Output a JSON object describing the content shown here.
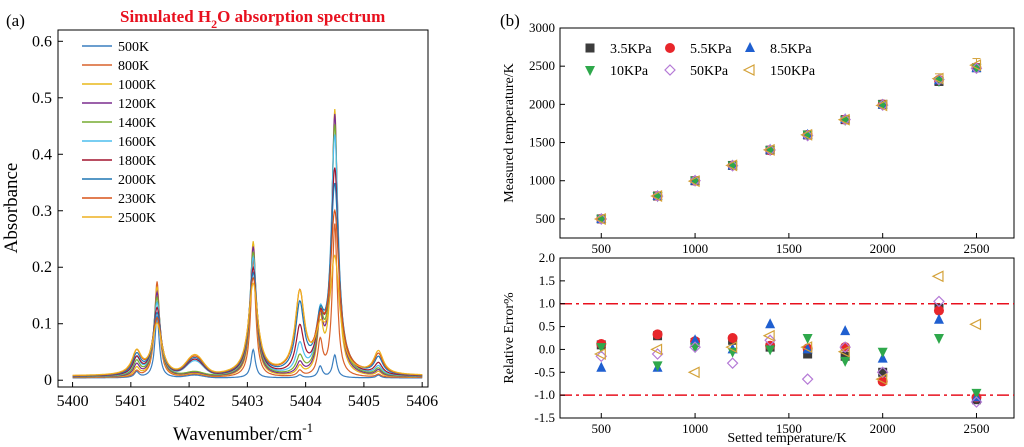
{
  "chart_data": [
    {
      "id": "a",
      "type": "line",
      "panel_label": "(a)",
      "title": "Simulated H",
      "title_sub": "2",
      "title_rest": "O absorption spectrum",
      "xlabel": "Wavenumber/cm",
      "xlabel_sup": "-1",
      "ylabel": "Absorbance",
      "xlim": [
        5399.75,
        5406.1
      ],
      "ylim": [
        -0.012,
        0.62
      ],
      "xticks": [
        5400,
        5401,
        5402,
        5403,
        5404,
        5405,
        5406
      ],
      "yticks": [
        0,
        0.1,
        0.2,
        0.3,
        0.4,
        0.5,
        0.6
      ],
      "ytick_labels": [
        "0",
        "0.1",
        "0.2",
        "0.3",
        "0.4",
        "0.5",
        "0.6"
      ],
      "peaks": [
        {
          "center": 5401.45,
          "heights": [
            0.11,
            0.17,
            0.16,
            0.15,
            0.14,
            0.13,
            0.12,
            0.11,
            0.1,
            0.09
          ]
        },
        {
          "center": 5403.1,
          "heights": [
            0.05,
            0.21,
            0.24,
            0.23,
            0.22,
            0.21,
            0.19,
            0.18,
            0.17,
            0.16
          ]
        },
        {
          "center": 5403.9,
          "heights": [
            0.005,
            0.01,
            0.015,
            0.02,
            0.03,
            0.05,
            0.08,
            0.12,
            0.14,
            0.14
          ]
        },
        {
          "center": 5404.5,
          "heights": [
            0.04,
            0.27,
            0.47,
            0.46,
            0.44,
            0.42,
            0.36,
            0.33,
            0.28,
            0.2
          ]
        },
        {
          "center": 5404.25,
          "heights": [
            0.02,
            0.06,
            0.09,
            0.09,
            0.09,
            0.09,
            0.08,
            0.08,
            0.07,
            0.06
          ]
        },
        {
          "center": 5401.1,
          "heights": [
            0.01,
            0.01,
            0.015,
            0.02,
            0.025,
            0.03,
            0.03,
            0.035,
            0.04,
            0.04
          ]
        },
        {
          "center": 5405.25,
          "heights": [
            0.005,
            0.005,
            0.008,
            0.01,
            0.012,
            0.015,
            0.02,
            0.03,
            0.035,
            0.04
          ]
        }
      ],
      "series": [
        {
          "name": "500K",
          "color": "#3a7ebf"
        },
        {
          "name": "800K",
          "color": "#d9622b"
        },
        {
          "name": "1000K",
          "color": "#e8b81a"
        },
        {
          "name": "1200K",
          "color": "#7b2d8e"
        },
        {
          "name": "1400K",
          "color": "#77ac30"
        },
        {
          "name": "1600K",
          "color": "#4dbeee"
        },
        {
          "name": "1800K",
          "color": "#a2142f"
        },
        {
          "name": "2000K",
          "color": "#1f77b4"
        },
        {
          "name": "2300K",
          "color": "#d95319"
        },
        {
          "name": "2500K",
          "color": "#edb120"
        }
      ]
    },
    {
      "id": "b_top",
      "type": "scatter",
      "panel_label": "(b)",
      "ylabel": "Measured temperature/K",
      "xlim": [
        280,
        2700
      ],
      "ylim": [
        250,
        3000
      ],
      "xticks": [
        500,
        1000,
        1500,
        2000,
        2500
      ],
      "yticks": [
        500,
        1000,
        1500,
        2000,
        2500,
        3000
      ],
      "x": [
        500,
        800,
        1000,
        1200,
        1400,
        1600,
        1800,
        2000,
        2300,
        2500
      ],
      "series": [
        {
          "name": "3.5KPa",
          "marker": "square",
          "color": "#3c3c3c",
          "values": [
            500,
            800,
            1000,
            1200,
            1400,
            1600,
            1800,
            2000,
            2300,
            2480
          ]
        },
        {
          "name": "5.5KPa",
          "marker": "circle",
          "color": "#e8262b",
          "values": [
            500,
            800,
            1000,
            1200,
            1400,
            1600,
            1800,
            2000,
            2320,
            2480
          ]
        },
        {
          "name": "8.5KPa",
          "marker": "triangle-up",
          "color": "#1f5fd0",
          "values": [
            498,
            800,
            1002,
            1200,
            1408,
            1600,
            1806,
            1996,
            2316,
            2475
          ]
        },
        {
          "name": "10KPa",
          "marker": "triangle-down",
          "color": "#2ea84b",
          "values": [
            500,
            797,
            1000,
            1199,
            1400,
            1604,
            1795,
            1998,
            2306,
            2478
          ]
        },
        {
          "name": "50KPa",
          "marker": "diamond",
          "color": "#b57ad6",
          "values": [
            499,
            799,
            1001,
            1196,
            1403,
            1590,
            1801,
            1990,
            2325,
            2472
          ]
        },
        {
          "name": "150KPa",
          "marker": "triangle-left",
          "color": "#d4a23a",
          "values": [
            499,
            800,
            995,
            1201,
            1404,
            1601,
            1799,
            1987,
            2337,
            2514
          ]
        }
      ]
    },
    {
      "id": "b_bottom",
      "type": "scatter",
      "xlabel": "Setted temperature/K",
      "ylabel": "Relative Error%",
      "xlim": [
        280,
        2700
      ],
      "ylim": [
        -1.5,
        2.0
      ],
      "xticks": [
        500,
        1000,
        1500,
        2000,
        2500
      ],
      "yticks": [
        -1.5,
        -1.0,
        -0.5,
        0.0,
        0.5,
        1.0,
        1.5,
        2.0
      ],
      "ytick_labels": [
        "-1.5",
        "-1.0",
        "-0.5",
        "0.0",
        "0.5",
        "1.0",
        "1.5",
        "2.0"
      ],
      "reference_lines": [
        1.0,
        -1.0
      ],
      "x": [
        500,
        800,
        1000,
        1200,
        1400,
        1600,
        1800,
        2000,
        2300,
        2500
      ],
      "series": [
        {
          "name": "3.5KPa",
          "marker": "square",
          "color": "#3c3c3c",
          "values": [
            0.1,
            0.3,
            0.15,
            0.2,
            0.05,
            -0.1,
            -0.15,
            -0.5,
            0.9,
            -1.1
          ]
        },
        {
          "name": "5.5KPa",
          "marker": "circle",
          "color": "#e8262b",
          "values": [
            0.12,
            0.33,
            0.18,
            0.25,
            0.08,
            0.02,
            0.05,
            -0.7,
            0.85,
            -1.05
          ]
        },
        {
          "name": "8.5KPa",
          "marker": "triangle-up",
          "color": "#1f5fd0",
          "values": [
            -0.4,
            -0.4,
            0.2,
            0.0,
            0.55,
            0.0,
            0.4,
            -0.2,
            0.65,
            -1.05
          ]
        },
        {
          "name": "10KPa",
          "marker": "triangle-down",
          "color": "#2ea84b",
          "values": [
            0.05,
            -0.35,
            0.05,
            -0.05,
            0.0,
            0.25,
            -0.25,
            -0.05,
            0.25,
            -0.95
          ]
        },
        {
          "name": "50KPa",
          "marker": "diamond",
          "color": "#b57ad6",
          "values": [
            -0.15,
            -0.1,
            0.05,
            -0.3,
            0.2,
            -0.65,
            0.05,
            -0.5,
            1.05,
            -1.15
          ]
        },
        {
          "name": "150KPa",
          "marker": "triangle-left",
          "color": "#d4a23a",
          "values": [
            -0.1,
            0.0,
            -0.5,
            0.05,
            0.3,
            0.05,
            -0.05,
            -0.65,
            1.6,
            0.55
          ]
        }
      ]
    }
  ]
}
